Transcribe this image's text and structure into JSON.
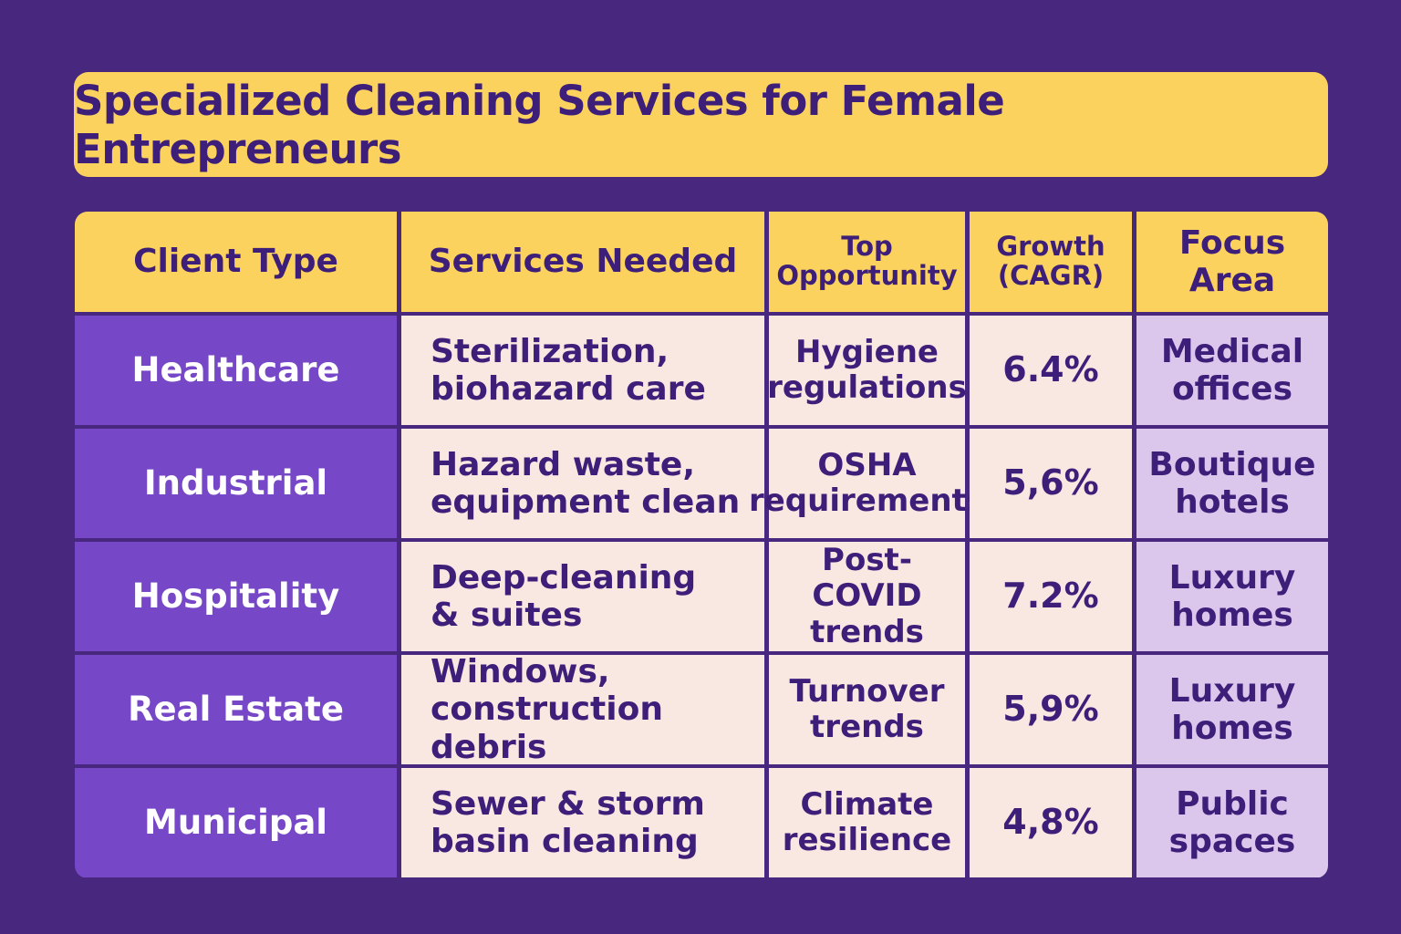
{
  "title": "Specialized Cleaning Services for Female Entrepreneurs",
  "colors": {
    "background": "#47287e",
    "header": "#fcd25e",
    "client_cell": "#7647c6",
    "body_cell": "#f9e7e2",
    "focus_cell": "#dcc7ec",
    "text": "#3d1f7a"
  },
  "chart_data": {
    "type": "table",
    "title": "Specialized Cleaning Services for Female Entrepreneurs",
    "columns": [
      "Client Type",
      "Services Needed",
      "Top Opportunity",
      "Growth (CAGR)",
      "Focus Area"
    ],
    "rows": [
      [
        "Healthcare",
        "Sterilization,\nbiohazard care",
        "Hygiene\nregulations",
        "6.4%",
        "Medical\noffices"
      ],
      [
        "Industrial",
        "Hazard waste,\nequipment clean",
        "OSHA\nrequirements",
        "5,6%",
        "Boutique\nhotels"
      ],
      [
        "Hospitality",
        "Deep-cleaning\n& suites",
        "Post-COVID\ntrends",
        "7.2%",
        "Luxury\nhomes"
      ],
      [
        "Real Estate",
        "Windows,\nconstruction debris",
        "Turnover\ntrends",
        "5,9%",
        "Luxury\nhomes"
      ],
      [
        "Municipal",
        "Sewer & storm\nbasin cleaning",
        "Climate\nresilience",
        "4,8%",
        "Public\nspaces"
      ]
    ]
  }
}
